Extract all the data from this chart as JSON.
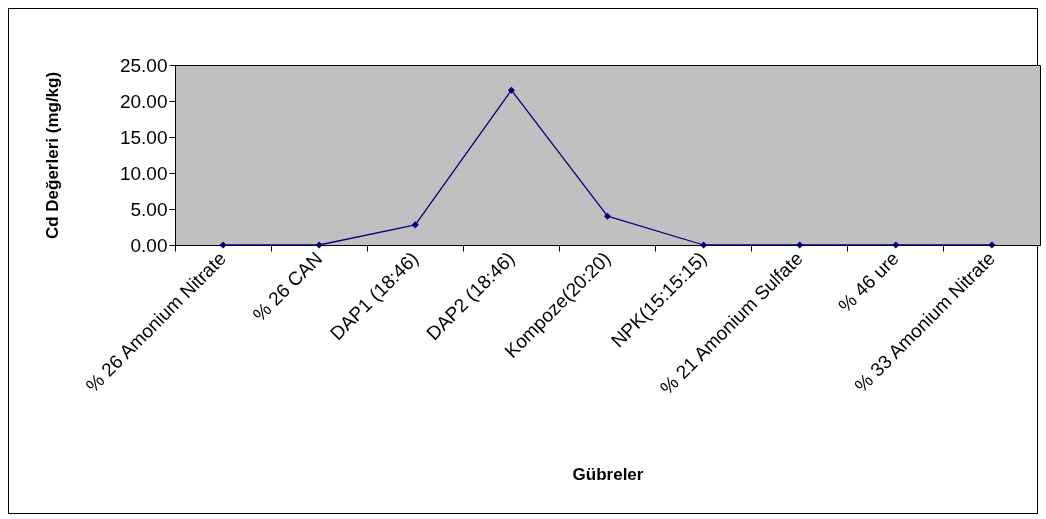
{
  "chart_data": {
    "type": "line",
    "xlabel": "Gübreler",
    "ylabel": "Cd Değerleri (mg/kg)",
    "categories": [
      "% 26 Amonium Nitrate",
      "% 26 CAN",
      "DAP1 (18:46)",
      "DAP2 (18:46)",
      "Kompoze(20:20)",
      "NPK(15:15:15)",
      "% 21 Amonium  Sulfate",
      "% 46 ure",
      "% 33 Amonium Nitrate"
    ],
    "series": [
      {
        "color": "#000080",
        "values": [
          0,
          0,
          2.8,
          21.5,
          4.0,
          0,
          0,
          0,
          0
        ]
      }
    ],
    "ylim": [
      0,
      25
    ],
    "yticks": [
      {
        "value": 0,
        "label": "0.00"
      },
      {
        "value": 5,
        "label": "5.00"
      },
      {
        "value": 10,
        "label": "10.00"
      },
      {
        "value": 15,
        "label": "15.00"
      },
      {
        "value": 20,
        "label": "20.00"
      },
      {
        "value": 25,
        "label": "25.00"
      }
    ],
    "marker": "diamond",
    "grid": false
  }
}
